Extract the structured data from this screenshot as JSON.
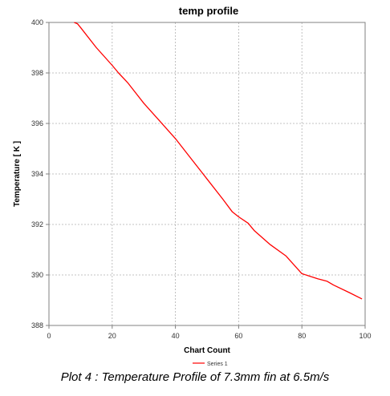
{
  "chart_data": {
    "type": "line",
    "title": "temp profile",
    "xlabel": "Chart Count",
    "ylabel": "Temperature [ K ]",
    "xlim": [
      0,
      100
    ],
    "ylim": [
      388,
      400
    ],
    "xticks": [
      "0",
      "20",
      "40",
      "60",
      "80",
      "100"
    ],
    "yticks": [
      "388",
      "390",
      "392",
      "394",
      "396",
      "398",
      "400"
    ],
    "grid": true,
    "legend_position": "bottom-center",
    "series": [
      {
        "name": "Series 1",
        "color": "#ff0000",
        "x": [
          8,
          9,
          10,
          15,
          20,
          22,
          25,
          30,
          35,
          40,
          45,
          50,
          55,
          58,
          60,
          63,
          65,
          70,
          75,
          80,
          85,
          88,
          90,
          95,
          99
        ],
        "y": [
          400.0,
          399.95,
          399.8,
          399.0,
          398.3,
          398.0,
          397.6,
          396.8,
          396.1,
          395.4,
          394.6,
          393.8,
          393.0,
          392.5,
          392.3,
          392.05,
          391.75,
          391.2,
          390.75,
          390.05,
          389.85,
          389.75,
          389.6,
          389.3,
          389.05
        ]
      }
    ]
  },
  "caption": "Plot 4 : Temperature Profile of 7.3mm fin at 6.5m/s"
}
